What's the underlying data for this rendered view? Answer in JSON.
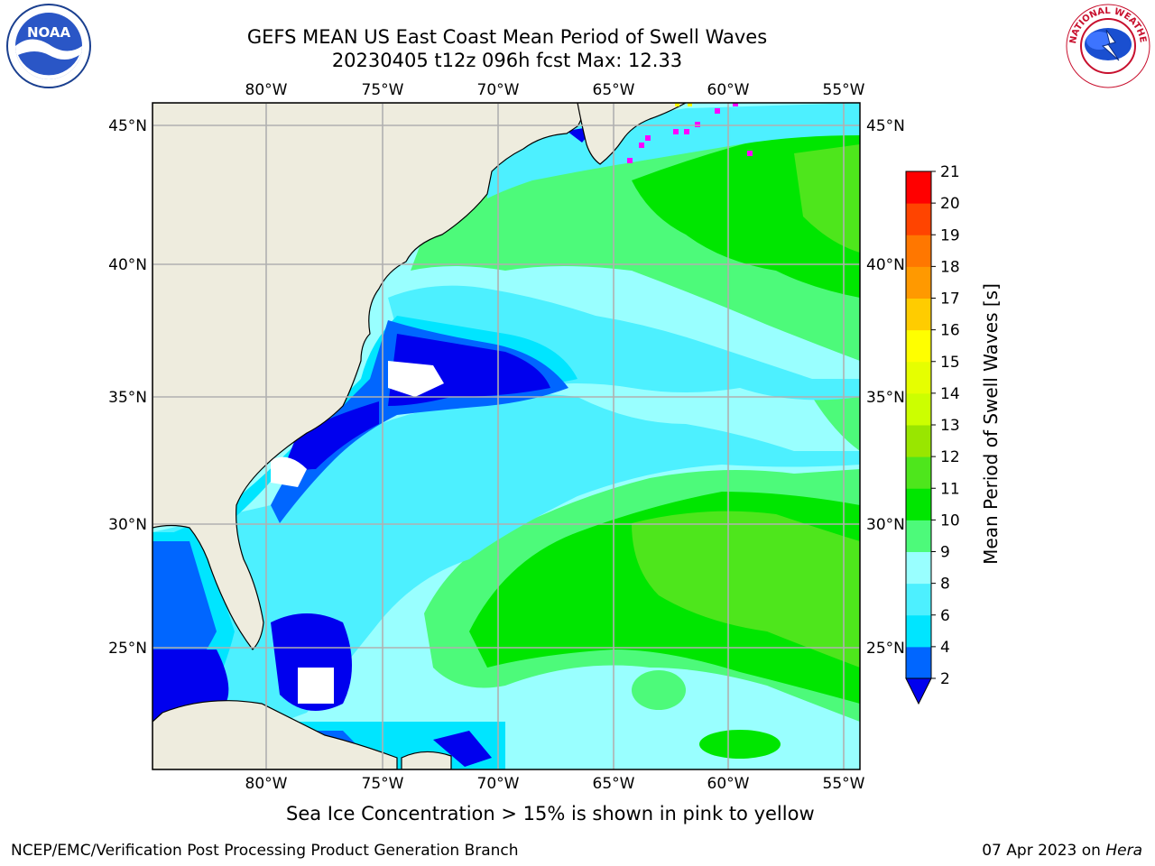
{
  "header": {
    "title_line1": "GEFS MEAN US East Coast Mean Period of Swell Waves",
    "title_line2": "20230405 t12z 096h fcst   Max: 12.33"
  },
  "logos": {
    "left": {
      "icon": "noaa-logo",
      "text": "NOAA"
    },
    "right": {
      "icon": "national-weather-service-logo",
      "text": "NATIONAL WEATHER SERVICE"
    }
  },
  "map": {
    "lon_ticks": [
      "80°W",
      "75°W",
      "70°W",
      "65°W",
      "60°W",
      "55°W"
    ],
    "lat_ticks": [
      "45°N",
      "40°N",
      "35°N",
      "30°N",
      "25°N"
    ],
    "land_color": "#eeecde",
    "grid_color": "#b0b0b0"
  },
  "colorbar": {
    "label": "Mean Period of Swell Waves [s]",
    "levels": [
      "2",
      "4",
      "6",
      "8",
      "9",
      "10",
      "11",
      "12",
      "13",
      "14",
      "15",
      "16",
      "17",
      "18",
      "19",
      "20",
      "21"
    ],
    "colors": [
      "#0066ff",
      "#00e5ff",
      "#4df0ff",
      "#99ffff",
      "#4dfa7a",
      "#00e600",
      "#4ee61c",
      "#99e600",
      "#ccff00",
      "#e6ff00",
      "#ffff00",
      "#ffcc00",
      "#ff9900",
      "#ff7700",
      "#ff4400",
      "#ff0000"
    ],
    "under_color": "#0000ee"
  },
  "note": "Sea Ice Concentration > 15% is shown in pink to yellow",
  "footer": {
    "left": "NCEP/EMC/Verification Post Processing Product Generation Branch",
    "right_date": "07 Apr 2023 on ",
    "right_host": "Hera"
  }
}
